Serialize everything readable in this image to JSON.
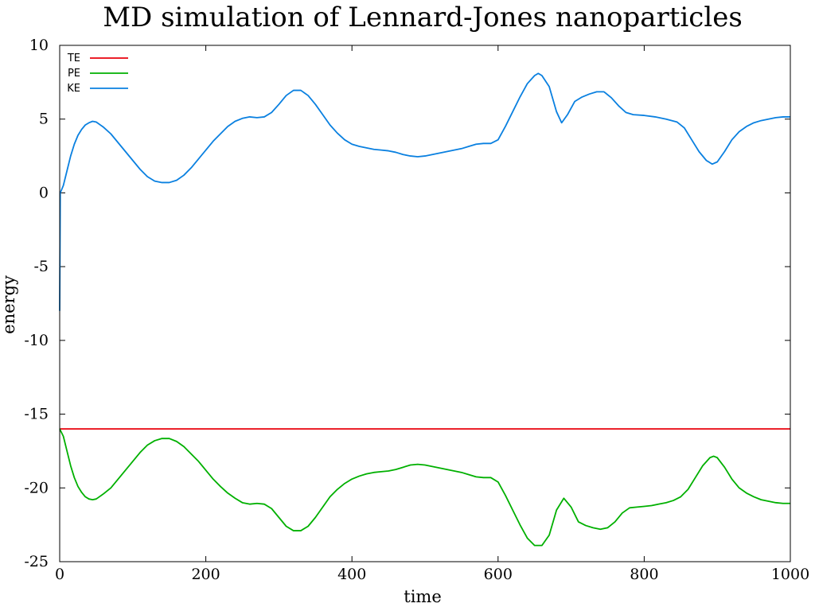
{
  "chart_data": {
    "type": "line",
    "title": "MD simulation of Lennard-Jones nanoparticles",
    "xlabel": "time",
    "ylabel": "energy",
    "xlim": [
      0,
      1000
    ],
    "ylim": [
      -25,
      10
    ],
    "xticks": [
      0,
      200,
      400,
      600,
      800,
      1000
    ],
    "yticks": [
      -25,
      -20,
      -15,
      -10,
      -5,
      0,
      5,
      10
    ],
    "grid": false,
    "legend_position": "top-left",
    "series": [
      {
        "name": "TE",
        "color": "#e8000b",
        "points": [
          [
            0,
            -16.0
          ],
          [
            0.6,
            -16.0
          ],
          [
            1000,
            -16.0
          ]
        ]
      },
      {
        "name": "PE",
        "color": "#00b000",
        "points": [
          [
            0,
            -16.0
          ],
          [
            5,
            -16.5
          ],
          [
            10,
            -17.5
          ],
          [
            15,
            -18.5
          ],
          [
            20,
            -19.3
          ],
          [
            25,
            -19.9
          ],
          [
            30,
            -20.3
          ],
          [
            35,
            -20.6
          ],
          [
            40,
            -20.75
          ],
          [
            45,
            -20.8
          ],
          [
            50,
            -20.75
          ],
          [
            60,
            -20.4
          ],
          [
            70,
            -20.0
          ],
          [
            80,
            -19.4
          ],
          [
            90,
            -18.8
          ],
          [
            100,
            -18.2
          ],
          [
            110,
            -17.6
          ],
          [
            120,
            -17.1
          ],
          [
            130,
            -16.8
          ],
          [
            140,
            -16.65
          ],
          [
            150,
            -16.65
          ],
          [
            160,
            -16.85
          ],
          [
            170,
            -17.2
          ],
          [
            180,
            -17.7
          ],
          [
            190,
            -18.2
          ],
          [
            200,
            -18.8
          ],
          [
            210,
            -19.4
          ],
          [
            220,
            -19.9
          ],
          [
            230,
            -20.35
          ],
          [
            240,
            -20.7
          ],
          [
            250,
            -21.0
          ],
          [
            260,
            -21.1
          ],
          [
            270,
            -21.05
          ],
          [
            280,
            -21.1
          ],
          [
            290,
            -21.4
          ],
          [
            300,
            -22.0
          ],
          [
            310,
            -22.6
          ],
          [
            320,
            -22.9
          ],
          [
            330,
            -22.9
          ],
          [
            340,
            -22.6
          ],
          [
            350,
            -22.0
          ],
          [
            360,
            -21.3
          ],
          [
            370,
            -20.6
          ],
          [
            380,
            -20.1
          ],
          [
            390,
            -19.7
          ],
          [
            400,
            -19.4
          ],
          [
            410,
            -19.2
          ],
          [
            420,
            -19.05
          ],
          [
            430,
            -18.95
          ],
          [
            440,
            -18.9
          ],
          [
            450,
            -18.85
          ],
          [
            460,
            -18.75
          ],
          [
            470,
            -18.6
          ],
          [
            480,
            -18.45
          ],
          [
            490,
            -18.4
          ],
          [
            500,
            -18.45
          ],
          [
            510,
            -18.55
          ],
          [
            520,
            -18.65
          ],
          [
            530,
            -18.75
          ],
          [
            540,
            -18.85
          ],
          [
            550,
            -18.95
          ],
          [
            560,
            -19.1
          ],
          [
            570,
            -19.25
          ],
          [
            580,
            -19.3
          ],
          [
            590,
            -19.3
          ],
          [
            600,
            -19.6
          ],
          [
            610,
            -20.5
          ],
          [
            620,
            -21.5
          ],
          [
            630,
            -22.5
          ],
          [
            640,
            -23.4
          ],
          [
            650,
            -23.9
          ],
          [
            660,
            -23.9
          ],
          [
            670,
            -23.2
          ],
          [
            680,
            -21.5
          ],
          [
            690,
            -20.7
          ],
          [
            700,
            -21.3
          ],
          [
            710,
            -22.3
          ],
          [
            720,
            -22.55
          ],
          [
            730,
            -22.7
          ],
          [
            740,
            -22.8
          ],
          [
            750,
            -22.7
          ],
          [
            760,
            -22.3
          ],
          [
            770,
            -21.7
          ],
          [
            780,
            -21.35
          ],
          [
            790,
            -21.3
          ],
          [
            800,
            -21.25
          ],
          [
            810,
            -21.2
          ],
          [
            820,
            -21.1
          ],
          [
            830,
            -21.0
          ],
          [
            840,
            -20.85
          ],
          [
            850,
            -20.6
          ],
          [
            860,
            -20.1
          ],
          [
            870,
            -19.3
          ],
          [
            880,
            -18.5
          ],
          [
            890,
            -17.95
          ],
          [
            895,
            -17.85
          ],
          [
            900,
            -17.95
          ],
          [
            910,
            -18.6
          ],
          [
            920,
            -19.4
          ],
          [
            930,
            -20.0
          ],
          [
            940,
            -20.35
          ],
          [
            950,
            -20.6
          ],
          [
            960,
            -20.8
          ],
          [
            970,
            -20.9
          ],
          [
            980,
            -21.0
          ],
          [
            990,
            -21.05
          ],
          [
            1000,
            -21.05
          ]
        ]
      },
      {
        "name": "KE",
        "color": "#0a80e0",
        "points": [
          [
            0,
            -8.0
          ],
          [
            0.8,
            0.0
          ],
          [
            5,
            0.5
          ],
          [
            10,
            1.5
          ],
          [
            15,
            2.5
          ],
          [
            20,
            3.3
          ],
          [
            25,
            3.9
          ],
          [
            30,
            4.3
          ],
          [
            35,
            4.6
          ],
          [
            40,
            4.75
          ],
          [
            45,
            4.85
          ],
          [
            50,
            4.8
          ],
          [
            60,
            4.45
          ],
          [
            70,
            4.0
          ],
          [
            80,
            3.4
          ],
          [
            90,
            2.8
          ],
          [
            100,
            2.2
          ],
          [
            110,
            1.6
          ],
          [
            120,
            1.1
          ],
          [
            130,
            0.8
          ],
          [
            140,
            0.7
          ],
          [
            150,
            0.7
          ],
          [
            160,
            0.85
          ],
          [
            170,
            1.2
          ],
          [
            180,
            1.7
          ],
          [
            190,
            2.3
          ],
          [
            200,
            2.9
          ],
          [
            210,
            3.5
          ],
          [
            220,
            4.0
          ],
          [
            230,
            4.5
          ],
          [
            240,
            4.85
          ],
          [
            250,
            5.05
          ],
          [
            260,
            5.15
          ],
          [
            270,
            5.1
          ],
          [
            280,
            5.15
          ],
          [
            290,
            5.45
          ],
          [
            300,
            6.0
          ],
          [
            310,
            6.6
          ],
          [
            320,
            6.95
          ],
          [
            330,
            6.95
          ],
          [
            340,
            6.6
          ],
          [
            350,
            6.0
          ],
          [
            360,
            5.3
          ],
          [
            370,
            4.6
          ],
          [
            380,
            4.05
          ],
          [
            390,
            3.6
          ],
          [
            400,
            3.3
          ],
          [
            410,
            3.15
          ],
          [
            420,
            3.05
          ],
          [
            430,
            2.95
          ],
          [
            440,
            2.9
          ],
          [
            450,
            2.85
          ],
          [
            460,
            2.75
          ],
          [
            470,
            2.6
          ],
          [
            480,
            2.5
          ],
          [
            490,
            2.45
          ],
          [
            500,
            2.5
          ],
          [
            510,
            2.6
          ],
          [
            520,
            2.7
          ],
          [
            530,
            2.8
          ],
          [
            540,
            2.9
          ],
          [
            550,
            3.0
          ],
          [
            560,
            3.15
          ],
          [
            570,
            3.3
          ],
          [
            580,
            3.35
          ],
          [
            590,
            3.35
          ],
          [
            600,
            3.6
          ],
          [
            610,
            4.5
          ],
          [
            620,
            5.5
          ],
          [
            630,
            6.5
          ],
          [
            640,
            7.4
          ],
          [
            650,
            7.95
          ],
          [
            655,
            8.1
          ],
          [
            660,
            7.95
          ],
          [
            670,
            7.2
          ],
          [
            680,
            5.5
          ],
          [
            687,
            4.75
          ],
          [
            695,
            5.3
          ],
          [
            705,
            6.2
          ],
          [
            715,
            6.5
          ],
          [
            725,
            6.7
          ],
          [
            735,
            6.85
          ],
          [
            745,
            6.85
          ],
          [
            755,
            6.45
          ],
          [
            765,
            5.9
          ],
          [
            775,
            5.45
          ],
          [
            785,
            5.3
          ],
          [
            800,
            5.25
          ],
          [
            815,
            5.15
          ],
          [
            830,
            5.0
          ],
          [
            845,
            4.8
          ],
          [
            855,
            4.4
          ],
          [
            865,
            3.6
          ],
          [
            875,
            2.8
          ],
          [
            885,
            2.2
          ],
          [
            893,
            1.95
          ],
          [
            900,
            2.1
          ],
          [
            910,
            2.8
          ],
          [
            920,
            3.6
          ],
          [
            930,
            4.15
          ],
          [
            940,
            4.5
          ],
          [
            950,
            4.75
          ],
          [
            960,
            4.9
          ],
          [
            970,
            5.0
          ],
          [
            980,
            5.1
          ],
          [
            990,
            5.15
          ],
          [
            1000,
            5.15
          ]
        ]
      }
    ]
  }
}
